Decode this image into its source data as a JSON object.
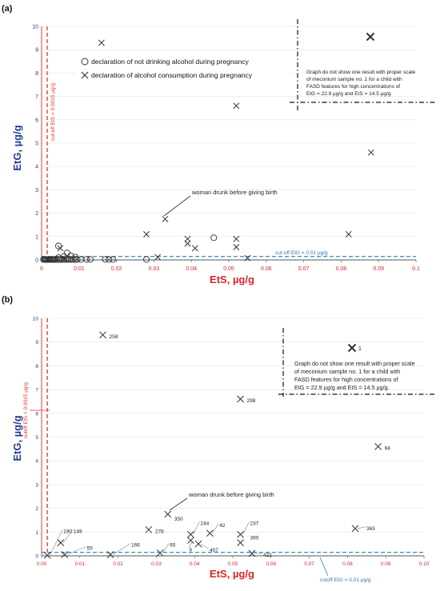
{
  "chart_data": [
    {
      "panel_label": "(a)",
      "type": "scatter",
      "xlabel": "EtS, µg/g",
      "ylabel": "EtG, µg/g",
      "xlim": [
        0,
        0.1
      ],
      "ylim": [
        0,
        10
      ],
      "x_ticks": [
        "0",
        "0.01",
        "0.02",
        "0.03",
        "0.04",
        "0.05",
        "0.06",
        "0.07",
        "0.08",
        "0.09",
        "0.1"
      ],
      "y_ticks": [
        "0",
        "1",
        "2",
        "3",
        "4",
        "5",
        "6",
        "7",
        "8",
        "9",
        "10"
      ],
      "legend_position": "top-center",
      "colors": {
        "axis_x": "#d62728",
        "axis_y": "#1f3a93",
        "cutoff_ets": "#e8302a",
        "cutoff_etg": "#2a7ab8",
        "marker": "#333333"
      },
      "series": [
        {
          "name": "declaration of not drinking alcohol during pregnancy",
          "marker": "circle",
          "points": [
            [
              0.0005,
              0.02
            ],
            [
              0.0008,
              0.02
            ],
            [
              0.001,
              0.02
            ],
            [
              0.0012,
              0.02
            ],
            [
              0.0015,
              0.02
            ],
            [
              0.0018,
              0.02
            ],
            [
              0.002,
              0.02
            ],
            [
              0.0022,
              0.02
            ],
            [
              0.0025,
              0.02
            ],
            [
              0.0028,
              0.02
            ],
            [
              0.003,
              0.02
            ],
            [
              0.0033,
              0.02
            ],
            [
              0.0036,
              0.02
            ],
            [
              0.004,
              0.02
            ],
            [
              0.0045,
              0.02
            ],
            [
              0.005,
              0.02
            ],
            [
              0.0055,
              0.02
            ],
            [
              0.006,
              0.02
            ],
            [
              0.0065,
              0.02
            ],
            [
              0.007,
              0.02
            ],
            [
              0.0075,
              0.02
            ],
            [
              0.008,
              0.02
            ],
            [
              0.0085,
              0.02
            ],
            [
              0.009,
              0.02
            ],
            [
              0.0095,
              0.02
            ],
            [
              0.0105,
              0.02
            ],
            [
              0.012,
              0.02
            ],
            [
              0.013,
              0.02
            ],
            [
              0.017,
              0.02
            ],
            [
              0.018,
              0.02
            ],
            [
              0.019,
              0.02
            ],
            [
              0.028,
              0.02
            ],
            [
              0.0045,
              0.6
            ],
            [
              0.006,
              0.15
            ],
            [
              0.0068,
              0.3
            ],
            [
              0.0078,
              0.18
            ],
            [
              0.009,
              0.12
            ],
            [
              0.0045,
              0.1
            ],
            [
              0.046,
              0.95
            ]
          ]
        },
        {
          "name": "declaration of alcohol consumption during pregnancy",
          "marker": "x",
          "points": [
            [
              0.016,
              9.3
            ],
            [
              0.052,
              6.6
            ],
            [
              0.088,
              4.6
            ],
            [
              0.033,
              1.75
            ],
            [
              0.028,
              1.1
            ],
            [
              0.039,
              0.9
            ],
            [
              0.039,
              0.7
            ],
            [
              0.041,
              0.5
            ],
            [
              0.052,
              0.9
            ],
            [
              0.052,
              0.55
            ],
            [
              0.082,
              1.1
            ],
            [
              0.031,
              0.12
            ],
            [
              0.055,
              0.08
            ],
            [
              0.005,
              0.5
            ],
            [
              0.0015,
              0.02
            ],
            [
              0.006,
              0.05
            ]
          ]
        }
      ],
      "cutoff_ets_label": "cut-off EtS = 0.0015 µg/g",
      "cutoff_etg_label": "cut-off EtG = 0.01 µg/g",
      "annotations": [
        "woman drunk before giving birth",
        "Graph do not show one result with proper scale of meconium sample no. 1 for a child with FASD features for high concentrations of EtG = 22.9 µg/g and EtS = 14.5 µg/g."
      ]
    },
    {
      "panel_label": "(b)",
      "type": "scatter",
      "xlabel": "EtS, µg/g",
      "ylabel": "EtG, µg/g",
      "xlim": [
        0,
        0.1
      ],
      "ylim": [
        0,
        10
      ],
      "x_ticks": [
        "0.00",
        "0.01",
        "0.02",
        "0.03",
        "0.04",
        "0.05",
        "0.06",
        "0.07",
        "0.08",
        "0.09",
        "0.10"
      ],
      "y_ticks": [
        "0",
        "1",
        "2",
        "3",
        "4",
        "5",
        "6",
        "7",
        "8",
        "9",
        "10"
      ],
      "colors": {
        "axis_x": "#d62728",
        "axis_y": "#1f3a93",
        "cutoff_ets": "#e8302a",
        "cutoff_etg": "#2a7ab8",
        "marker": "#333333"
      },
      "points": [
        {
          "x": 0.016,
          "y": 9.3,
          "label": "258"
        },
        {
          "x": 0.052,
          "y": 6.6,
          "label": "298"
        },
        {
          "x": 0.088,
          "y": 4.6,
          "label": "94"
        },
        {
          "x": 0.033,
          "y": 1.75,
          "label": "350"
        },
        {
          "x": 0.028,
          "y": 1.1,
          "label": "278"
        },
        {
          "x": 0.039,
          "y": 0.9,
          "label": "244"
        },
        {
          "x": 0.044,
          "y": 0.95,
          "label": "42"
        },
        {
          "x": 0.052,
          "y": 0.9,
          "label": "237"
        },
        {
          "x": 0.052,
          "y": 0.55,
          "label": "390"
        },
        {
          "x": 0.039,
          "y": 0.65,
          "label": "4"
        },
        {
          "x": 0.041,
          "y": 0.5,
          "label": "407"
        },
        {
          "x": 0.031,
          "y": 0.12,
          "label": "65"
        },
        {
          "x": 0.055,
          "y": 0.1,
          "label": "422"
        },
        {
          "x": 0.082,
          "y": 1.15,
          "label": "363"
        },
        {
          "x": 0.005,
          "y": 0.55,
          "label": "149"
        },
        {
          "x": 0.0015,
          "y": 0.02,
          "label": "190"
        },
        {
          "x": 0.006,
          "y": 0.05,
          "label": "55"
        },
        {
          "x": 0.018,
          "y": 0.05,
          "label": "166"
        }
      ],
      "cutoff_ets_label": "cutoff EtS = 0.0015 µg/g",
      "cutoff_etg_label": "cutoff EtG = 0.01 µg/g",
      "annotations": [
        "woman drunk before giving birth",
        "Graph do not show one result with proper scale of meconium sample no. 1 for a child with FASD features for high concentrations of EtG = 22.9 µg/g and EtS = 14.5 µg/g."
      ],
      "inset_point_label": "1"
    }
  ]
}
